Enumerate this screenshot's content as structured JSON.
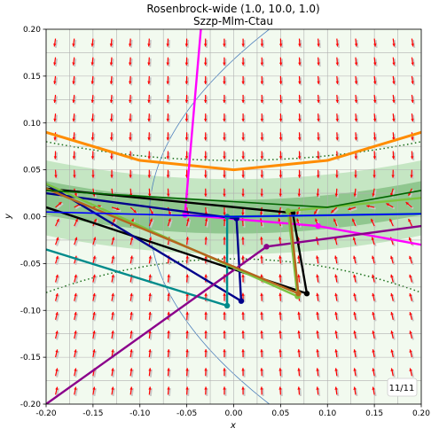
{
  "chart_data": {
    "type": "line",
    "title": "Rosenbrock-wide (1.0, 10.0, 1.0)",
    "subtitle": "Szzp-Mlm-Ctau",
    "xlabel": "x",
    "ylabel": "y",
    "xlim": [
      -0.2,
      0.2
    ],
    "ylim": [
      -0.2,
      0.2
    ],
    "x_ticks": [
      "-0.20",
      "-0.15",
      "-0.10",
      "-0.05",
      "0.00",
      "0.05",
      "0.10",
      "0.15",
      "0.20"
    ],
    "y_ticks": [
      "0.20",
      "0.15",
      "0.10",
      "0.05",
      "0.00",
      "-0.05",
      "-0.10",
      "-0.15",
      "-0.20"
    ],
    "grid": true,
    "badge": "11/11",
    "colors": {
      "arrow": "#ff0000",
      "arrow_shadow": "#c8c8c8",
      "valley": "#2e8b2e",
      "contour": "#1a6e1a",
      "parabola": "#4f81bd"
    },
    "series": [
      {
        "color": "#ff8c00",
        "points": [
          [
            -0.2,
            0.09
          ],
          [
            -0.1,
            0.06
          ],
          [
            0.0,
            0.05
          ],
          [
            0.1,
            0.06
          ],
          [
            0.2,
            0.09
          ]
        ]
      },
      {
        "color": "#ff00ff",
        "points": [
          [
            -0.035,
            0.2
          ],
          [
            -0.052,
            0.002
          ],
          [
            0.09,
            -0.01
          ],
          [
            0.2,
            -0.03
          ]
        ]
      },
      {
        "color": "#000000",
        "points": [
          [
            -0.2,
            0.03
          ],
          [
            0.063,
            0.004
          ],
          [
            0.078,
            -0.082
          ],
          [
            -0.2,
            0.01
          ]
        ]
      },
      {
        "color": "#00008b",
        "points": [
          [
            -0.2,
            0.025
          ],
          [
            0.003,
            -0.002
          ],
          [
            0.008,
            -0.09
          ],
          [
            -0.2,
            0.035
          ]
        ]
      },
      {
        "color": "#008b8b",
        "points": [
          [
            -0.2,
            -0.035
          ],
          [
            -0.007,
            -0.095
          ],
          [
            -0.007,
            0.0
          ],
          [
            0.2,
            0.003
          ]
        ]
      },
      {
        "color": "#8b008b",
        "points": [
          [
            -0.2,
            -0.2
          ],
          [
            0.035,
            -0.032
          ],
          [
            0.2,
            -0.01
          ]
        ]
      },
      {
        "color": "#7cc340",
        "points": [
          [
            -0.2,
            0.035
          ],
          [
            0.068,
            -0.085
          ],
          [
            0.058,
            0.006
          ],
          [
            0.2,
            0.02
          ]
        ]
      },
      {
        "color": "#b5651d",
        "points": [
          [
            -0.2,
            0.03
          ],
          [
            0.069,
            -0.082
          ],
          [
            0.06,
            0.004
          ]
        ]
      },
      {
        "color": "#006400",
        "points": [
          [
            -0.2,
            0.028
          ],
          [
            0.1,
            0.01
          ],
          [
            0.2,
            0.028
          ]
        ]
      },
      {
        "color": "#0000ff",
        "points": [
          [
            -0.2,
            0.005
          ],
          [
            0.0,
            0.0
          ],
          [
            0.2,
            0.003
          ]
        ]
      }
    ]
  }
}
